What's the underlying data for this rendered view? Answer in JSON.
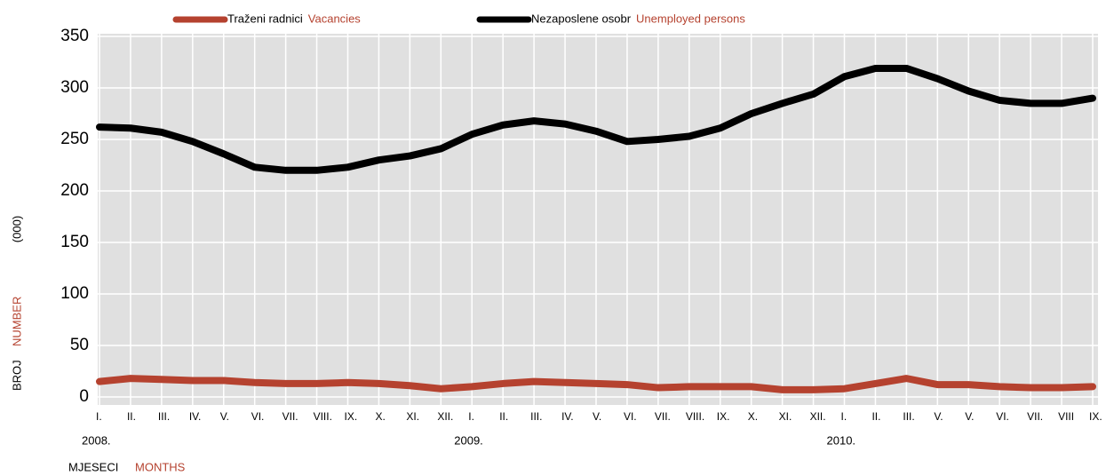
{
  "chart_data": {
    "type": "line",
    "y_label": "(000)",
    "y_label_2": "BROJ",
    "y_label_2_en": "NUMBER",
    "x_label": "MJESECI",
    "x_label_en": "MONTHS",
    "categories": [
      "I.",
      "II.",
      "III.",
      "IV.",
      "V.",
      "VI.",
      "VII.",
      "VIII.",
      "IX.",
      "X.",
      "XI.",
      "XII.",
      "I.",
      "II.",
      "III.",
      "IV.",
      "V.",
      "VI.",
      "VII.",
      "VIII.",
      "IX.",
      "X.",
      "XI.",
      "XII.",
      "I.",
      "II.",
      "III.",
      "V.",
      "V.",
      "VI.",
      "VII.",
      "VIII",
      "IX."
    ],
    "years": [
      {
        "index": 0,
        "label": "2008."
      },
      {
        "index": 12,
        "label": "2009."
      },
      {
        "index": 24,
        "label": "2010."
      }
    ],
    "series": [
      {
        "name": "Traženi radnici",
        "name_en": "Vacancies",
        "color": "#b5422f",
        "values": [
          15,
          18,
          17,
          16,
          16,
          14,
          13,
          13,
          14,
          13,
          11,
          8,
          10,
          13,
          15,
          14,
          13,
          12,
          9,
          10,
          10,
          10,
          7,
          7,
          8,
          13,
          18,
          12,
          12,
          10,
          9,
          9,
          10
        ]
      },
      {
        "name": "Nezaposlene osobr",
        "name_en": "Unemployed persons",
        "color": "#000000",
        "values": [
          262,
          261,
          257,
          248,
          236,
          223,
          220,
          220,
          223,
          230,
          234,
          241,
          255,
          264,
          268,
          265,
          258,
          248,
          250,
          253,
          261,
          275,
          285,
          294,
          311,
          319,
          319,
          309,
          297,
          288,
          285,
          285,
          290
        ]
      }
    ],
    "ylim": [
      0,
      350
    ],
    "yticks": [
      0,
      50,
      100,
      150,
      200,
      250,
      300,
      350
    ],
    "grid": true
  }
}
